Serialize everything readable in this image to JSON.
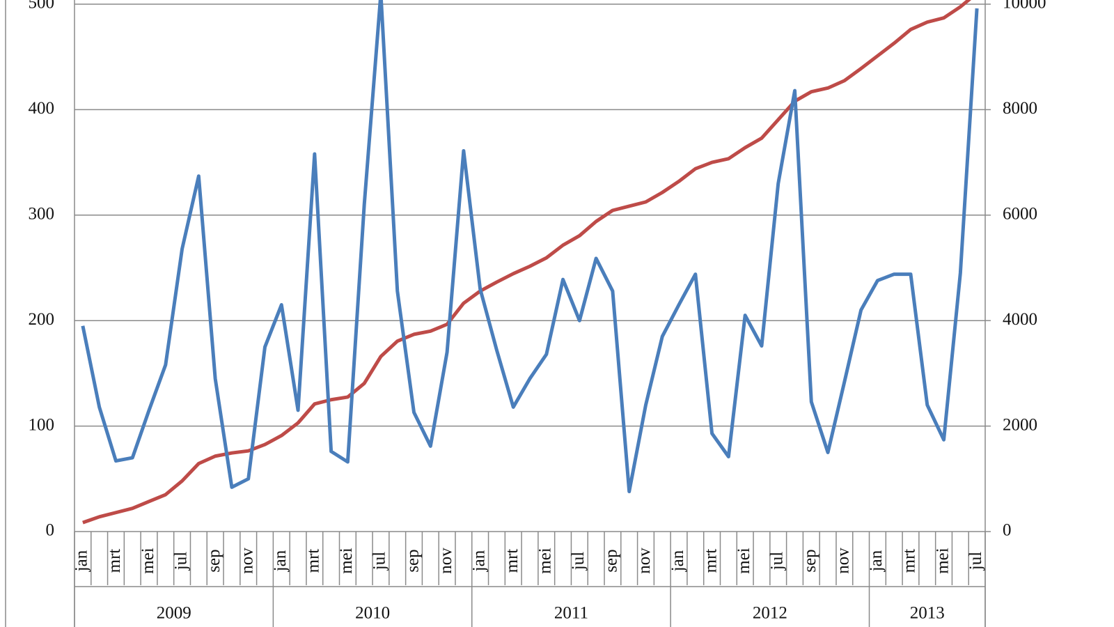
{
  "chart_data": {
    "type": "line",
    "categories": [
      "jan",
      null,
      "mrt",
      null,
      "mei",
      null,
      "jul",
      null,
      "sep",
      null,
      "nov",
      null,
      "jan",
      null,
      "mrt",
      null,
      "mei",
      null,
      "jul",
      null,
      "sep",
      null,
      "nov",
      null,
      "jan",
      null,
      "mrt",
      null,
      "mei",
      null,
      "jul",
      null,
      "sep",
      null,
      "nov",
      null,
      "jan",
      null,
      "mrt",
      null,
      "mei",
      null,
      "jul",
      null,
      "sep",
      null,
      "nov",
      null,
      "jan",
      null,
      "mrt",
      null,
      "mei",
      null,
      "jul"
    ],
    "groups": [
      "2009",
      "2010",
      "2011",
      "2012",
      "2013"
    ],
    "series": [
      {
        "color": "#4a7ebb",
        "values": [
          195,
          118,
          67,
          70,
          115,
          158,
          268,
          337,
          145,
          42,
          50,
          175,
          215,
          115,
          358,
          76,
          66,
          310,
          510,
          228,
          113,
          81,
          170,
          361,
          230,
          172,
          118,
          145,
          168,
          239,
          200,
          259,
          228,
          38,
          120,
          185,
          215,
          244,
          93,
          71,
          205,
          176,
          330,
          418,
          123,
          75,
          142,
          210,
          238,
          244,
          244,
          120,
          87,
          245,
          496
        ]
      },
      {
        "color": "#be4b48",
        "axis": "y2",
        "values": [
          170,
          280,
          360,
          440,
          570,
          700,
          960,
          1290,
          1430,
          1490,
          1530,
          1650,
          1820,
          2060,
          2420,
          2500,
          2550,
          2810,
          3320,
          3610,
          3740,
          3800,
          3930,
          4330,
          4560,
          4730,
          4890,
          5030,
          5190,
          5430,
          5610,
          5880,
          6090,
          6170,
          6250,
          6430,
          6640,
          6880,
          7000,
          7070,
          7280,
          7460,
          7810,
          8160,
          8340,
          8410,
          8550,
          8780,
          9020,
          9260,
          9520,
          9660,
          9740,
          9950,
          10210
        ]
      }
    ],
    "ylim": [
      0,
      500
    ],
    "yticks": [
      0,
      100,
      200,
      300,
      400,
      500
    ],
    "y2lim": [
      0,
      10000
    ],
    "y2ticks": [
      0,
      2000,
      4000,
      6000,
      8000,
      10000
    ],
    "grid": true
  }
}
